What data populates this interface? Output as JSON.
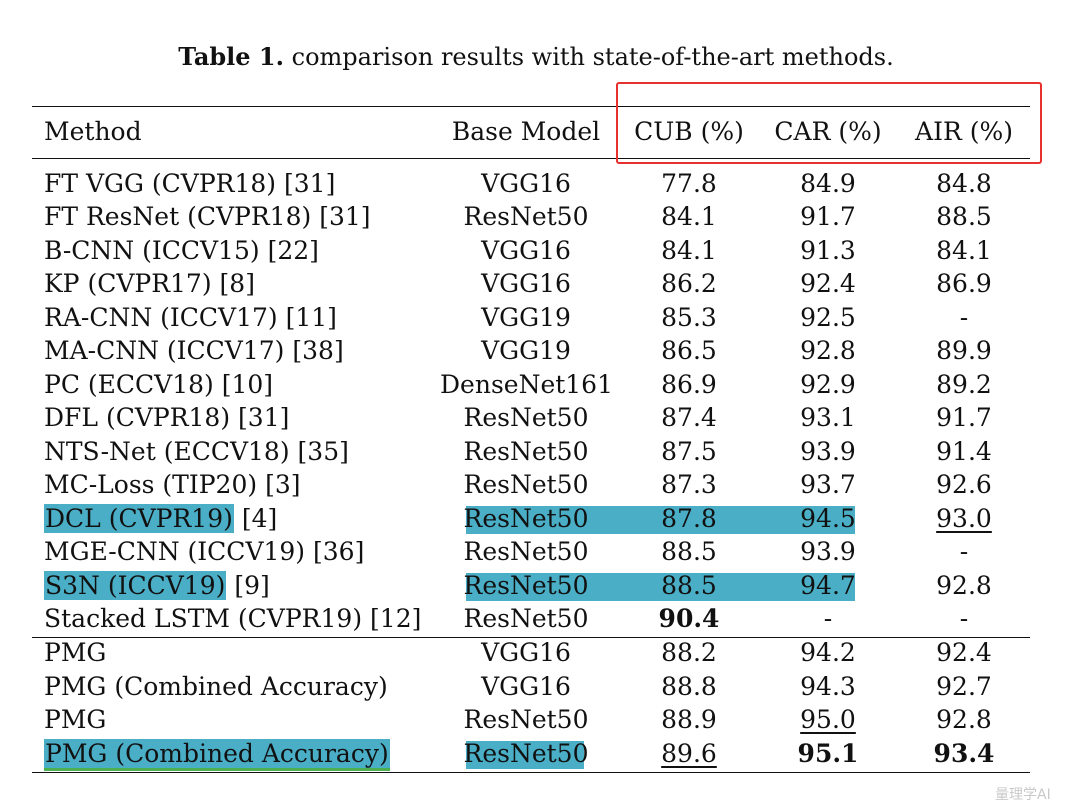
{
  "caption": {
    "label": "Table 1.",
    "text": "comparison results with state-of-the-art methods."
  },
  "header": [
    "Method",
    "Base Model",
    "CUB (%)",
    "CAR (%)",
    "AIR (%)"
  ],
  "rows": [
    {
      "method": "FT VGG (CVPR18)",
      "ref": "[31]",
      "base": "VGG16",
      "cub": "77.8",
      "car": "84.9",
      "air": "84.8"
    },
    {
      "method": "FT ResNet (CVPR18)",
      "ref": "[31]",
      "base": "ResNet50",
      "cub": "84.1",
      "car": "91.7",
      "air": "88.5"
    },
    {
      "method": "B-CNN (ICCV15)",
      "ref": "[22]",
      "base": "VGG16",
      "cub": "84.1",
      "car": "91.3",
      "air": "84.1"
    },
    {
      "method": "KP (CVPR17)",
      "ref": "[8]",
      "base": "VGG16",
      "cub": "86.2",
      "car": "92.4",
      "air": "86.9"
    },
    {
      "method": "RA-CNN (ICCV17)",
      "ref": "[11]",
      "base": "VGG19",
      "cub": "85.3",
      "car": "92.5",
      "air": "-"
    },
    {
      "method": "MA-CNN (ICCV17)",
      "ref": "[38]",
      "base": "VGG19",
      "cub": "86.5",
      "car": "92.8",
      "air": "89.9"
    },
    {
      "method": "PC (ECCV18)",
      "ref": "[10]",
      "base": "DenseNet161",
      "cub": "86.9",
      "car": "92.9",
      "air": "89.2"
    },
    {
      "method": "DFL (CVPR18)",
      "ref": "[31]",
      "base": "ResNet50",
      "cub": "87.4",
      "car": "93.1",
      "air": "91.7"
    },
    {
      "method": "NTS-Net (ECCV18)",
      "ref": "[35]",
      "base": "ResNet50",
      "cub": "87.5",
      "car": "93.9",
      "air": "91.4"
    },
    {
      "method": "MC-Loss (TIP20)",
      "ref": "[3]",
      "base": "ResNet50",
      "cub": "87.3",
      "car": "93.7",
      "air": "92.6"
    },
    {
      "method": "DCL (CVPR19)",
      "ref": "[4]",
      "base": "ResNet50",
      "cub": "87.8",
      "car": "94.5",
      "air": "93.0"
    },
    {
      "method": "MGE-CNN (ICCV19)",
      "ref": "[36]",
      "base": "ResNet50",
      "cub": "88.5",
      "car": "93.9",
      "air": "-"
    },
    {
      "method": "S3N (ICCV19)",
      "ref": "[9]",
      "base": "ResNet50",
      "cub": "88.5",
      "car": "94.7",
      "air": "92.8"
    },
    {
      "method": "Stacked LSTM (CVPR19)",
      "ref": "[12]",
      "base": "ResNet50",
      "cub": "90.4",
      "car": "-",
      "air": "-"
    },
    {
      "method": "PMG",
      "ref": "",
      "base": "VGG16",
      "cub": "88.2",
      "car": "94.2",
      "air": "92.4"
    },
    {
      "method": "PMG (Combined Accuracy)",
      "ref": "",
      "base": "VGG16",
      "cub": "88.8",
      "car": "94.3",
      "air": "92.7"
    },
    {
      "method": "PMG",
      "ref": "",
      "base": "ResNet50",
      "cub": "88.9",
      "car": "95.0",
      "air": "92.8"
    },
    {
      "method": "PMG (Combined Accuracy)",
      "ref": "",
      "base": "ResNet50",
      "cub": "89.6",
      "car": "95.1",
      "air": "93.4"
    }
  ],
  "watermark": "量理学AI",
  "colors": {
    "highlight": "#4aaec6",
    "box": "#e8312f",
    "underline": "#4caf50"
  }
}
